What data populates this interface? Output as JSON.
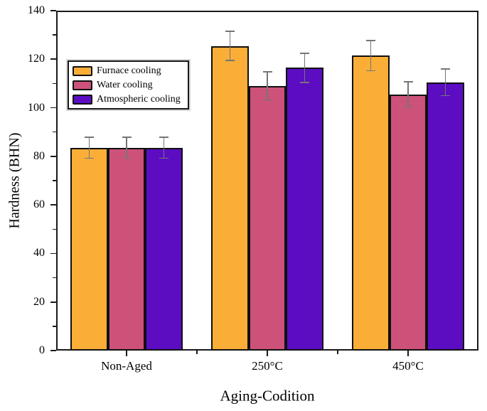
{
  "chart_data": {
    "type": "bar",
    "title": "",
    "xlabel": "Aging-Codition",
    "ylabel": "Hardness (BHN)",
    "categories": [
      "Non-Aged",
      "250°C",
      "450°C"
    ],
    "series": [
      {
        "name": "Furnace cooling",
        "color": "#FAAE38",
        "values": [
          83.5,
          125.5,
          121.5
        ],
        "errors": [
          4.3,
          6.0,
          6.2
        ]
      },
      {
        "name": "Water cooling",
        "color": "#CD527A",
        "values": [
          83.5,
          109.0,
          105.5
        ],
        "errors": [
          4.3,
          5.8,
          5.2
        ]
      },
      {
        "name": "Atmospheric cooling",
        "color": "#5C0DC2",
        "values": [
          83.5,
          116.5,
          110.5
        ],
        "errors": [
          4.3,
          6.0,
          5.5
        ]
      }
    ],
    "ylim": [
      0,
      140
    ],
    "yticks": [
      0,
      20,
      40,
      60,
      80,
      100,
      120,
      140
    ],
    "y_minor_step": 10,
    "grid": false,
    "legend_position": "upper-left",
    "styles": {
      "background": "#ffffff",
      "axis_color": "#1a1a1a",
      "bar_border_color": "#101010",
      "error_bar_color": "#757575",
      "legend_border_color": "#1a1a1a",
      "text_color": "#000000"
    }
  }
}
